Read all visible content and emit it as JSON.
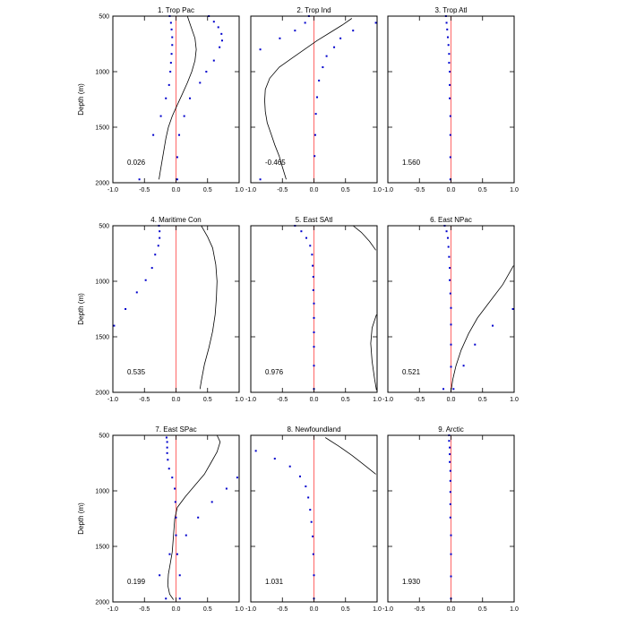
{
  "chart_data": {
    "type": "scatter",
    "x_ticks": [
      "-1.0",
      "-0.5",
      "0.0",
      "0.5",
      "1.0"
    ],
    "y_ticks": [
      "500",
      "1000",
      "1500",
      "2000"
    ],
    "ylabel": "Depth (m)",
    "xlim": [
      -1,
      1
    ],
    "ylim": [
      500,
      2000
    ],
    "y_inverted": true,
    "zero_line_color": "#ff6666",
    "dot_color": "#0000cc",
    "curve_color": "#000000",
    "panels": [
      {
        "title": "1. Trop Pac",
        "value_label": "0.026",
        "dots": [
          [
            -0.1,
            500
          ],
          [
            -0.08,
            560
          ],
          [
            -0.07,
            620
          ],
          [
            -0.06,
            690
          ],
          [
            -0.06,
            760
          ],
          [
            -0.07,
            840
          ],
          [
            -0.08,
            920
          ],
          [
            -0.09,
            1000
          ],
          [
            -0.11,
            1120
          ],
          [
            -0.16,
            1240
          ],
          [
            -0.24,
            1400
          ],
          [
            -0.36,
            1570
          ],
          [
            -0.58,
            1970
          ],
          [
            0.52,
            500
          ],
          [
            0.6,
            550
          ],
          [
            0.67,
            600
          ],
          [
            0.72,
            660
          ],
          [
            0.73,
            720
          ],
          [
            0.69,
            780
          ],
          [
            0.6,
            900
          ],
          [
            0.48,
            1000
          ],
          [
            0.38,
            1100
          ],
          [
            0.22,
            1240
          ],
          [
            0.13,
            1400
          ],
          [
            0.05,
            1570
          ],
          [
            0.02,
            1770
          ],
          [
            0.02,
            1970
          ]
        ],
        "curve": [
          [
            0.18,
            500
          ],
          [
            0.24,
            600
          ],
          [
            0.3,
            700
          ],
          [
            0.32,
            800
          ],
          [
            0.3,
            900
          ],
          [
            0.25,
            1000
          ],
          [
            0.18,
            1100
          ],
          [
            0.1,
            1200
          ],
          [
            0.02,
            1300
          ],
          [
            -0.06,
            1400
          ],
          [
            -0.12,
            1500
          ],
          [
            -0.16,
            1600
          ],
          [
            -0.19,
            1700
          ],
          [
            -0.22,
            1800
          ],
          [
            -0.25,
            1900
          ],
          [
            -0.27,
            1970
          ]
        ]
      },
      {
        "title": "2. Trop Ind",
        "value_label": "-0.465",
        "dots": [
          [
            -0.08,
            500
          ],
          [
            -0.14,
            560
          ],
          [
            -0.3,
            630
          ],
          [
            -0.54,
            700
          ],
          [
            -0.85,
            800
          ],
          [
            0.98,
            560
          ],
          [
            0.62,
            630
          ],
          [
            0.42,
            700
          ],
          [
            0.32,
            780
          ],
          [
            0.2,
            860
          ],
          [
            0.14,
            960
          ],
          [
            0.08,
            1080
          ],
          [
            0.05,
            1230
          ],
          [
            0.03,
            1380
          ],
          [
            0.02,
            1570
          ],
          [
            0.01,
            1760
          ],
          [
            -0.85,
            1970
          ]
        ],
        "curve": [
          [
            0.6,
            520
          ],
          [
            0.45,
            580
          ],
          [
            0.25,
            650
          ],
          [
            0.05,
            720
          ],
          [
            -0.15,
            800
          ],
          [
            -0.35,
            880
          ],
          [
            -0.55,
            960
          ],
          [
            -0.7,
            1060
          ],
          [
            -0.77,
            1160
          ],
          [
            -0.78,
            1260
          ],
          [
            -0.77,
            1360
          ],
          [
            -0.74,
            1460
          ],
          [
            -0.68,
            1560
          ],
          [
            -0.62,
            1660
          ],
          [
            -0.55,
            1760
          ],
          [
            -0.5,
            1860
          ],
          [
            -0.44,
            1970
          ]
        ]
      },
      {
        "title": "3. Trop Atl",
        "value_label": "1.560",
        "dots": [
          [
            -0.08,
            500
          ],
          [
            -0.07,
            560
          ],
          [
            -0.06,
            620
          ],
          [
            -0.05,
            690
          ],
          [
            -0.04,
            760
          ],
          [
            -0.03,
            840
          ],
          [
            -0.03,
            920
          ],
          [
            -0.02,
            1000
          ],
          [
            -0.02,
            1120
          ],
          [
            -0.02,
            1240
          ],
          [
            -0.01,
            1400
          ],
          [
            -0.01,
            1570
          ],
          [
            -0.01,
            1770
          ],
          [
            -0.01,
            1970
          ]
        ],
        "curve": []
      },
      {
        "title": "4. Maritime Con",
        "value_label": "0.535",
        "dots": [
          [
            -0.27,
            500
          ],
          [
            -0.26,
            550
          ],
          [
            -0.26,
            610
          ],
          [
            -0.28,
            680
          ],
          [
            -0.33,
            760
          ],
          [
            -0.38,
            880
          ],
          [
            -0.48,
            990
          ],
          [
            -0.62,
            1100
          ],
          [
            -0.8,
            1250
          ],
          [
            -0.98,
            1400
          ]
        ],
        "curve": [
          [
            0.4,
            500
          ],
          [
            0.5,
            600
          ],
          [
            0.58,
            700
          ],
          [
            0.63,
            850
          ],
          [
            0.65,
            1000
          ],
          [
            0.64,
            1150
          ],
          [
            0.62,
            1300
          ],
          [
            0.58,
            1450
          ],
          [
            0.52,
            1600
          ],
          [
            0.45,
            1750
          ],
          [
            0.4,
            1900
          ],
          [
            0.38,
            1970
          ]
        ]
      },
      {
        "title": "5. East SAtl",
        "value_label": "0.976",
        "dots": [
          [
            -0.3,
            500
          ],
          [
            -0.2,
            550
          ],
          [
            -0.12,
            610
          ],
          [
            -0.06,
            680
          ],
          [
            -0.03,
            760
          ],
          [
            -0.02,
            860
          ],
          [
            -0.01,
            960
          ],
          [
            -0.01,
            1080
          ],
          [
            0,
            1200
          ],
          [
            0,
            1330
          ],
          [
            0,
            1460
          ],
          [
            0,
            1590
          ],
          [
            0,
            1760
          ],
          [
            0,
            1970
          ]
        ],
        "curve": [
          [
            0.62,
            500
          ],
          [
            0.75,
            560
          ],
          [
            0.88,
            640
          ],
          [
            0.98,
            720
          ]
        ],
        "curve2": [
          [
            0.99,
            1300
          ],
          [
            0.92,
            1420
          ],
          [
            0.9,
            1560
          ],
          [
            0.92,
            1720
          ],
          [
            0.96,
            1880
          ],
          [
            0.99,
            1980
          ]
        ]
      },
      {
        "title": "6. East NPac",
        "value_label": "0.521",
        "dots": [
          [
            -0.1,
            500
          ],
          [
            -0.07,
            550
          ],
          [
            -0.05,
            610
          ],
          [
            -0.04,
            690
          ],
          [
            -0.03,
            780
          ],
          [
            -0.02,
            880
          ],
          [
            -0.02,
            990
          ],
          [
            -0.01,
            1110
          ],
          [
            0,
            1240
          ],
          [
            0,
            1390
          ],
          [
            0,
            1570
          ],
          [
            0,
            1770
          ],
          [
            -0.12,
            1970
          ],
          [
            0.04,
            1970
          ],
          [
            0.2,
            1760
          ],
          [
            0.38,
            1570
          ],
          [
            0.66,
            1400
          ],
          [
            0.98,
            1250
          ]
        ],
        "curve": [
          [
            0.99,
            860
          ],
          [
            0.82,
            1030
          ],
          [
            0.62,
            1180
          ],
          [
            0.42,
            1330
          ],
          [
            0.28,
            1470
          ],
          [
            0.16,
            1620
          ],
          [
            0.08,
            1760
          ],
          [
            0.03,
            1880
          ],
          [
            0,
            1990
          ]
        ]
      },
      {
        "title": "7. East SPac",
        "value_label": "0.199",
        "dots": [
          [
            -0.15,
            520
          ],
          [
            -0.14,
            560
          ],
          [
            -0.14,
            610
          ],
          [
            -0.14,
            660
          ],
          [
            -0.13,
            720
          ],
          [
            -0.11,
            800
          ],
          [
            -0.06,
            880
          ],
          [
            -0.02,
            980
          ],
          [
            -0.01,
            1100
          ],
          [
            0,
            1240
          ],
          [
            0,
            1400
          ],
          [
            0.02,
            1570
          ],
          [
            0.06,
            1760
          ],
          [
            0.06,
            1970
          ],
          [
            0.97,
            880
          ],
          [
            0.8,
            980
          ],
          [
            0.57,
            1100
          ],
          [
            0.35,
            1240
          ],
          [
            0.16,
            1400
          ],
          [
            -0.1,
            1570
          ],
          [
            -0.26,
            1760
          ],
          [
            -0.16,
            1970
          ]
        ],
        "curve": [
          [
            0.65,
            500
          ],
          [
            0.7,
            560
          ],
          [
            0.65,
            650
          ],
          [
            0.55,
            750
          ],
          [
            0.45,
            850
          ],
          [
            0.3,
            950
          ],
          [
            0.15,
            1050
          ],
          [
            0.02,
            1150
          ],
          [
            -0.02,
            1250
          ],
          [
            -0.04,
            1400
          ],
          [
            -0.06,
            1550
          ],
          [
            -0.09,
            1650
          ],
          [
            -0.12,
            1750
          ],
          [
            -0.13,
            1850
          ],
          [
            -0.1,
            1930
          ],
          [
            -0.04,
            1980
          ]
        ]
      },
      {
        "title": "8. Newfoundland",
        "value_label": "1.031",
        "dots": [
          [
            -0.92,
            640
          ],
          [
            -0.62,
            710
          ],
          [
            -0.38,
            780
          ],
          [
            -0.22,
            870
          ],
          [
            -0.13,
            960
          ],
          [
            -0.09,
            1060
          ],
          [
            -0.06,
            1170
          ],
          [
            -0.04,
            1280
          ],
          [
            -0.02,
            1410
          ],
          [
            -0.01,
            1570
          ],
          [
            0,
            1760
          ],
          [
            0,
            1970
          ]
        ],
        "curve": [
          [
            0.18,
            520
          ],
          [
            0.4,
            600
          ],
          [
            0.6,
            680
          ],
          [
            0.78,
            760
          ],
          [
            0.98,
            850
          ]
        ]
      },
      {
        "title": "9. Arctic",
        "value_label": "1.930",
        "dots": [
          [
            -0.03,
            500
          ],
          [
            -0.03,
            550
          ],
          [
            -0.02,
            610
          ],
          [
            -0.02,
            670
          ],
          [
            -0.02,
            740
          ],
          [
            -0.01,
            820
          ],
          [
            -0.01,
            910
          ],
          [
            -0.01,
            1010
          ],
          [
            -0.01,
            1120
          ],
          [
            -0.01,
            1240
          ],
          [
            0,
            1400
          ],
          [
            0,
            1570
          ],
          [
            0,
            1770
          ],
          [
            0,
            1970
          ]
        ],
        "curve": []
      }
    ]
  }
}
